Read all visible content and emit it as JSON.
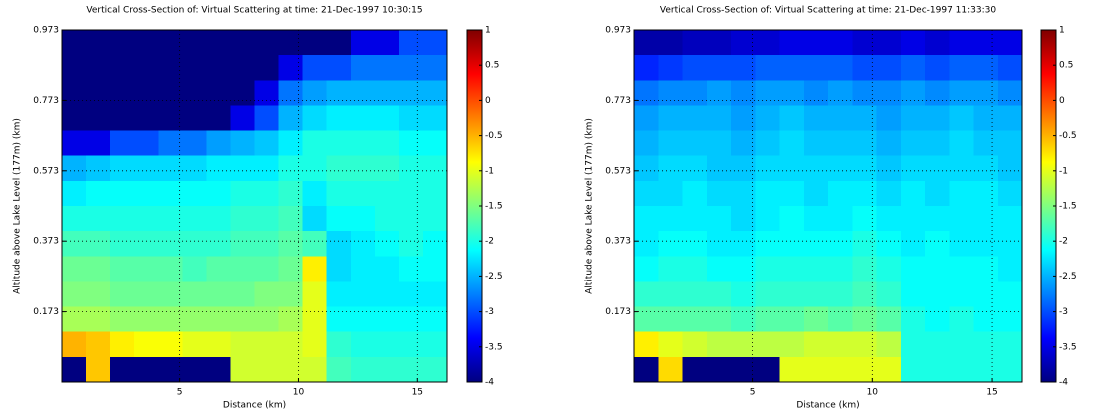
{
  "chart_data": [
    {
      "type": "heatmap",
      "title": "Vertical Cross-Section of:  Virtual Scattering   at time: 21-Dec-1997 10:30:15",
      "x_label": "Distance (km)",
      "y_label": "Altitude above Lake Level (177m) (km)",
      "xlim": [
        0.05,
        16.25
      ],
      "xticks": [
        5,
        10,
        15
      ],
      "ylim": [
        -0.027,
        0.973
      ],
      "yticks": [
        0.173,
        0.373,
        0.573,
        0.773,
        0.973
      ],
      "clim": [
        -4,
        1
      ],
      "cticks": [
        1,
        0.5,
        0,
        -0.5,
        -1,
        -1.5,
        -2,
        -2.5,
        -3,
        -3.5,
        -4
      ],
      "colormap": "jet",
      "grid": true,
      "z": [
        [
          -4,
          -4,
          -4,
          -4,
          -4,
          -4,
          -4,
          -4,
          -4,
          -4,
          -4,
          -4,
          -3.5,
          -3.5,
          -3,
          -3
        ],
        [
          -4,
          -4,
          -4,
          -4,
          -4,
          -4,
          -4,
          -4,
          -4,
          -3.5,
          -3,
          -3,
          -2.8,
          -2.8,
          -2.8,
          -2.8
        ],
        [
          -4,
          -4,
          -4,
          -4,
          -4,
          -4,
          -4,
          -4,
          -3.5,
          -2.8,
          -2.6,
          -2.5,
          -2.5,
          -2.5,
          -2.5,
          -2.5
        ],
        [
          -4,
          -4,
          -4,
          -4,
          -4,
          -4,
          -4,
          -3.5,
          -3,
          -2.5,
          -2.3,
          -2.2,
          -2.2,
          -2.2,
          -2.3,
          -2.3
        ],
        [
          -3.5,
          -3.5,
          -3,
          -3,
          -2.8,
          -2.8,
          -2.6,
          -2.5,
          -2.4,
          -2.2,
          -2,
          -2,
          -2,
          -2,
          -2.1,
          -2.1
        ],
        [
          -2.5,
          -2.4,
          -2.3,
          -2.3,
          -2.3,
          -2.3,
          -2.2,
          -2.2,
          -2.2,
          -2,
          -2,
          -1.9,
          -1.9,
          -1.9,
          -2,
          -2
        ],
        [
          -2.2,
          -2.1,
          -2.1,
          -2.1,
          -2.1,
          -2.1,
          -2.1,
          -2,
          -2,
          -1.9,
          -2.2,
          -2,
          -2,
          -2,
          -2,
          -2
        ],
        [
          -2,
          -2,
          -2,
          -2,
          -2,
          -2,
          -2,
          -1.9,
          -1.9,
          -1.8,
          -2.3,
          -2.1,
          -2.1,
          -2,
          -2,
          -2
        ],
        [
          -1.8,
          -1.8,
          -1.9,
          -1.9,
          -1.9,
          -1.9,
          -1.9,
          -1.8,
          -1.8,
          -1.7,
          -1.8,
          -2.3,
          -2.2,
          -2.1,
          -2,
          -2.1
        ],
        [
          -1.6,
          -1.6,
          -1.7,
          -1.7,
          -1.7,
          -1.8,
          -1.7,
          -1.7,
          -1.7,
          -1.6,
          -0.8,
          -2.3,
          -2.2,
          -2.2,
          -2.1,
          -2.1
        ],
        [
          -1.5,
          -1.5,
          -1.6,
          -1.6,
          -1.6,
          -1.6,
          -1.6,
          -1.6,
          -1.5,
          -1.5,
          -1,
          -2.2,
          -2.2,
          -2.2,
          -2.2,
          -2.2
        ],
        [
          -1.3,
          -1.3,
          -1.4,
          -1.4,
          -1.4,
          -1.4,
          -1.4,
          -1.4,
          -1.4,
          -1.3,
          -1,
          -2.1,
          -2.1,
          -2.1,
          -2.1,
          -2.1
        ],
        [
          -0.5,
          -0.6,
          -0.8,
          -0.9,
          -0.9,
          -1,
          -1,
          -1.1,
          -1.1,
          -1.1,
          -1,
          -1.9,
          -2,
          -2,
          -2,
          -2
        ],
        [
          -4,
          -0.6,
          -4,
          -4,
          -4,
          -4,
          -4,
          -1.1,
          -1.1,
          -1.1,
          -1.1,
          -1.8,
          -1.9,
          -1.9,
          -1.9,
          -1.9
        ]
      ]
    },
    {
      "type": "heatmap",
      "title": "Vertical Cross-Section of:  Virtual Scattering   at time: 21-Dec-1997 11:33:30",
      "x_label": "Distance (km)",
      "y_label": "Altitude above Lake Level (177m) (km)",
      "xlim": [
        0.05,
        16.25
      ],
      "xticks": [
        5,
        10,
        15
      ],
      "ylim": [
        -0.027,
        0.973
      ],
      "yticks": [
        0.173,
        0.373,
        0.573,
        0.773,
        0.973
      ],
      "clim": [
        -4,
        1
      ],
      "cticks": [
        1,
        0.5,
        0,
        -0.5,
        -1,
        -1.5,
        -2,
        -2.5,
        -3,
        -3.5,
        -4
      ],
      "colormap": "jet",
      "grid": true,
      "z": [
        [
          -3.8,
          -3.8,
          -3.7,
          -3.7,
          -3.6,
          -3.6,
          -3.5,
          -3.5,
          -3.5,
          -3.6,
          -3.6,
          -3.5,
          -3.6,
          -3.5,
          -3.5,
          -3.5
        ],
        [
          -3.2,
          -3.1,
          -3,
          -3,
          -3,
          -2.9,
          -2.9,
          -2.9,
          -2.9,
          -3,
          -3,
          -2.9,
          -3,
          -2.9,
          -2.9,
          -3
        ],
        [
          -2.8,
          -2.7,
          -2.7,
          -2.6,
          -2.7,
          -2.6,
          -2.6,
          -2.7,
          -2.6,
          -2.7,
          -2.7,
          -2.6,
          -2.7,
          -2.6,
          -2.6,
          -2.7
        ],
        [
          -2.6,
          -2.5,
          -2.5,
          -2.5,
          -2.6,
          -2.5,
          -2.4,
          -2.5,
          -2.5,
          -2.5,
          -2.6,
          -2.5,
          -2.5,
          -2.4,
          -2.5,
          -2.5
        ],
        [
          -2.5,
          -2.4,
          -2.4,
          -2.4,
          -2.5,
          -2.4,
          -2.3,
          -2.4,
          -2.4,
          -2.4,
          -2.5,
          -2.4,
          -2.4,
          -2.3,
          -2.4,
          -2.4
        ],
        [
          -2.4,
          -2.3,
          -2.3,
          -2.4,
          -2.4,
          -2.3,
          -2.3,
          -2.3,
          -2.3,
          -2.3,
          -2.4,
          -2.3,
          -2.3,
          -2.3,
          -2.3,
          -2.4
        ],
        [
          -2.3,
          -2.3,
          -2.2,
          -2.3,
          -2.3,
          -2.2,
          -2.2,
          -2.3,
          -2.2,
          -2.2,
          -2.3,
          -2.2,
          -2.3,
          -2.2,
          -2.2,
          -2.3
        ],
        [
          -2.2,
          -2.2,
          -2.2,
          -2.2,
          -2.3,
          -2.2,
          -2.1,
          -2.2,
          -2.2,
          -2.1,
          -2.2,
          -2.2,
          -2.2,
          -2.2,
          -2.2,
          -2.2
        ],
        [
          -2.2,
          -2.1,
          -2.1,
          -2.2,
          -2.2,
          -2.1,
          -2.1,
          -2.1,
          -2.1,
          -2,
          -2.1,
          -2.2,
          -2.1,
          -2.2,
          -2.2,
          -2.2
        ],
        [
          -2.1,
          -2,
          -2,
          -2.1,
          -2.1,
          -2,
          -2,
          -2,
          -2,
          -1.9,
          -2,
          -2.1,
          -2.1,
          -2.1,
          -2.1,
          -2.2
        ],
        [
          -1.9,
          -1.9,
          -1.9,
          -1.9,
          -2,
          -1.9,
          -1.9,
          -1.9,
          -1.9,
          -1.8,
          -1.9,
          -2.1,
          -2.1,
          -2.1,
          -2.1,
          -2.1
        ],
        [
          -1.7,
          -1.7,
          -1.7,
          -1.7,
          -1.8,
          -1.7,
          -1.7,
          -1.6,
          -1.7,
          -1.6,
          -1.7,
          -2,
          -2.1,
          -2,
          -2.1,
          -2.1
        ],
        [
          -0.8,
          -1,
          -1.1,
          -1.2,
          -1.2,
          -1.2,
          -1.2,
          -1.1,
          -1.1,
          -1.1,
          -1.2,
          -2,
          -2,
          -2,
          -2,
          -2
        ],
        [
          -4,
          -0.7,
          -4,
          -4,
          -4,
          -4,
          -1,
          -1,
          -1,
          -1,
          -1,
          -2,
          -2,
          -2,
          -2,
          -2
        ]
      ]
    }
  ]
}
